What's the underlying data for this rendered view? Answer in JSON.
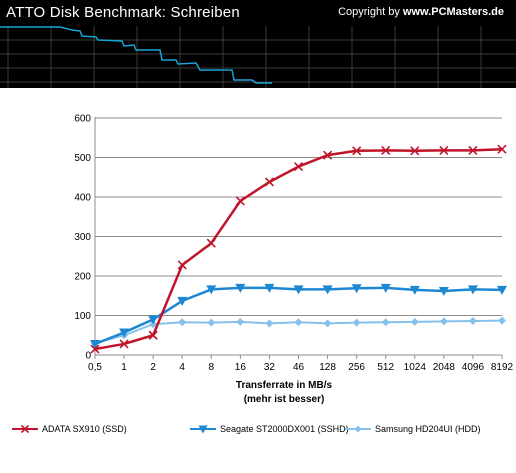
{
  "header": {
    "title": "ATTO Disk Benchmark: Schreiben",
    "copyright_prefix": "Copyright by",
    "copyright_site": "www.PCMasters.de"
  },
  "colors": {
    "header_bg": "#000000",
    "header_line": "#1aa3d6",
    "grid": "#8c8c8c",
    "axis": "#8c8c8c"
  },
  "chart_data": {
    "type": "line",
    "title": "ATTO Disk Benchmark: Schreiben",
    "xlabel": "Transferrate in MB/s",
    "xlabel_sub": "(mehr ist besser)",
    "ylabel": "",
    "categories": [
      "0,5",
      "1",
      "2",
      "4",
      "8",
      "16",
      "32",
      "46",
      "128",
      "256",
      "512",
      "1024",
      "2048",
      "4096",
      "8192"
    ],
    "y_ticks": [
      0,
      100,
      200,
      300,
      400,
      500,
      600
    ],
    "ylim": [
      0,
      600
    ],
    "grid": "horizontal",
    "legend_position": "bottom",
    "series": [
      {
        "name": "ADATA SX910 (SSD)",
        "color": "#c0142a",
        "marker": "x",
        "values": [
          15,
          28,
          50,
          228,
          283,
          390,
          438,
          477,
          506,
          517,
          518,
          517,
          518,
          518,
          521
        ]
      },
      {
        "name": "Seagate ST2000DX001 (SSHD)",
        "color": "#1e87d2",
        "marker": "triangle-down",
        "values": [
          28,
          57,
          90,
          137,
          166,
          170,
          170,
          166,
          166,
          169,
          170,
          165,
          162,
          166,
          165
        ]
      },
      {
        "name": "Samsung HD204UI (HDD)",
        "color": "#86c1eb",
        "marker": "diamond",
        "values": [
          30,
          50,
          78,
          83,
          82,
          84,
          80,
          83,
          80,
          82,
          83,
          84,
          85,
          86,
          87
        ]
      }
    ]
  }
}
